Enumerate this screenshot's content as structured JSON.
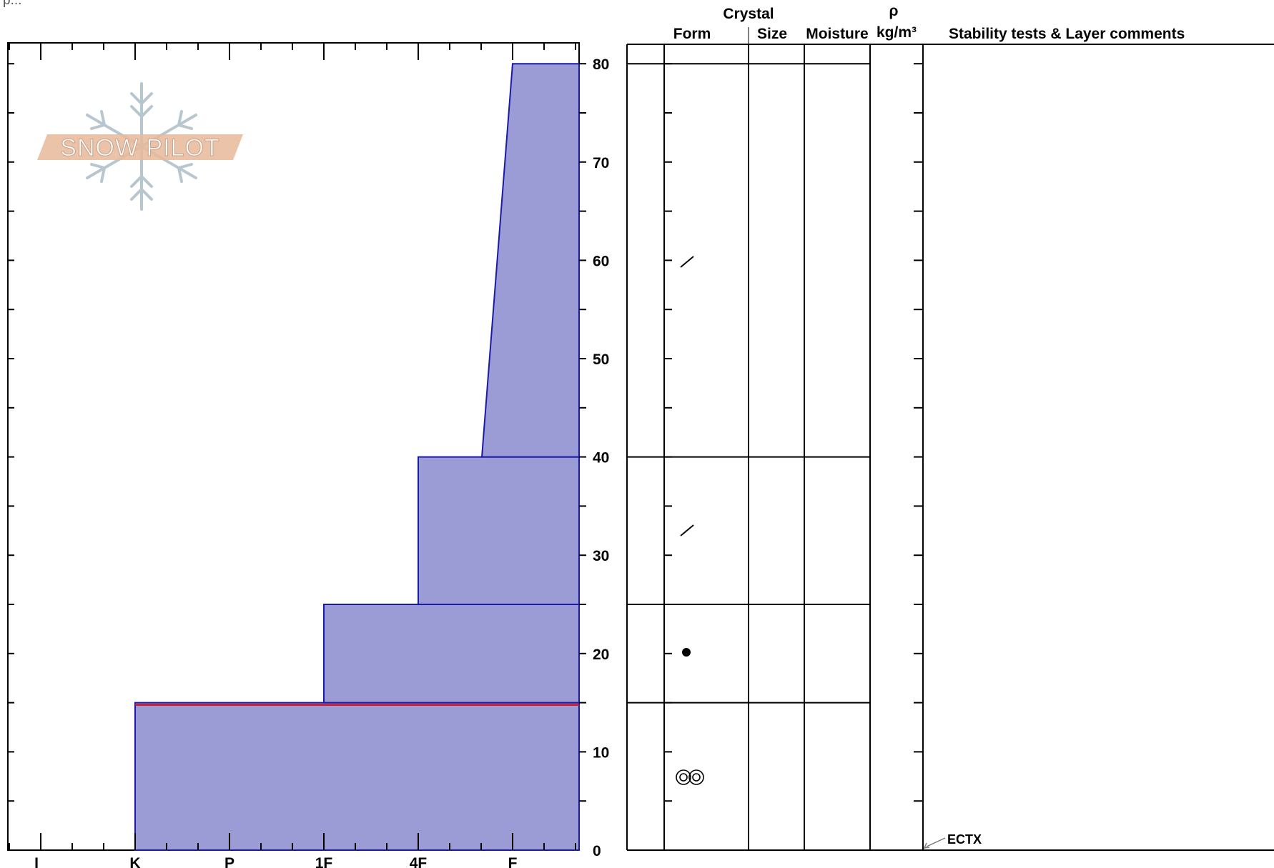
{
  "header": {
    "top_note": "p...",
    "crystal": "Crystal",
    "form": "Form",
    "size": "Size",
    "moisture": "Moisture",
    "rho": "ρ",
    "density_unit": "kg/m³",
    "comments": "Stability tests & Layer comments"
  },
  "logo": {
    "text": "SNOW PILOT"
  },
  "annotations": {
    "stability_test": "ECTX"
  },
  "colors": {
    "hardness_fill": "#9b9bd6",
    "hardness_edge": "#1a1aa8",
    "failure_line": "#d01020",
    "logo_text": "#e8b89a",
    "logo_flake": "#b8c6d0"
  },
  "chart_data": {
    "type": "area",
    "title": "",
    "xlabel": "",
    "ylabel": "",
    "x_categories": [
      "I",
      "K",
      "P",
      "1F",
      "4F",
      "F"
    ],
    "x_axis_order": "I (hardest) left to F (softest) right",
    "y_ticks": [
      0,
      10,
      20,
      30,
      40,
      50,
      60,
      70,
      80
    ],
    "ylim": [
      0,
      82
    ],
    "layers": [
      {
        "bottom": 0,
        "top": 15,
        "hardness_bottom": "K",
        "hardness_top": "K",
        "crystal_form": "melt-freeze (clustered rounds)"
      },
      {
        "bottom": 15,
        "top": 25,
        "hardness_bottom": "1F",
        "hardness_top": "1F",
        "crystal_form": "rounded grains"
      },
      {
        "bottom": 25,
        "top": 40,
        "hardness_bottom": "4F",
        "hardness_top": "4F",
        "crystal_form": "decomposing fragments"
      },
      {
        "bottom": 40,
        "top": 80,
        "hardness_bottom": "4F-F",
        "hardness_top": "F",
        "crystal_form": "decomposing fragments"
      }
    ],
    "failure_layer_height": 15,
    "stability_test": {
      "label": "ECTX",
      "height": 0
    }
  }
}
